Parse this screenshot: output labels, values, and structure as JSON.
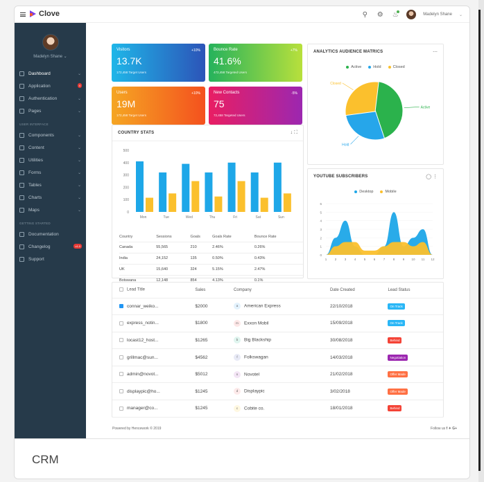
{
  "app": {
    "name": "Clove",
    "user": "Madelyn Shane"
  },
  "sidebar": {
    "profile_name": "Madelyn Shane",
    "items": [
      {
        "label": "Dashboard",
        "icon": "pulse-icon"
      },
      {
        "label": "Application",
        "icon": "calendar-icon",
        "badge": "4"
      },
      {
        "label": "Authentication",
        "icon": "lock-icon"
      },
      {
        "label": "Pages",
        "icon": "page-icon"
      }
    ],
    "section_ui": "USER INTERFACE",
    "ui_items": [
      {
        "label": "Components"
      },
      {
        "label": "Content"
      },
      {
        "label": "Utilities"
      },
      {
        "label": "Forms"
      },
      {
        "label": "Tables"
      },
      {
        "label": "Charts"
      },
      {
        "label": "Maps"
      }
    ],
    "section_start": "GETTING STARTED",
    "start_items": [
      {
        "label": "Documentation"
      },
      {
        "label": "Changelog",
        "badge": "v1.0"
      },
      {
        "label": "Support"
      }
    ]
  },
  "cards": [
    {
      "label": "Visitors",
      "pct": "+10%",
      "value": "13.7K",
      "sub": "172,458 Target Users",
      "color1": "#1fb6e8",
      "color2": "#2c54b8"
    },
    {
      "label": "Bounce Rate",
      "pct": "+7%",
      "value": "41.6%",
      "sub": "472,458 Targeted Users",
      "color1": "#25b25c",
      "color2": "#b8e03c"
    },
    {
      "label": "Users",
      "pct": "+10%",
      "value": "19M",
      "sub": "172,458 Target Users",
      "color1": "#f5a623",
      "color2": "#f4511e"
    },
    {
      "label": "New Contacts",
      "pct": "-5%",
      "value": "75",
      "sub": "72,458 Targeted Users",
      "color1": "#e91e63",
      "color2": "#9c27b0"
    }
  ],
  "country_stats": {
    "title": "COUNTRY STATS",
    "headers": [
      "Country",
      "Sessions",
      "Goals",
      "Goals Rate",
      "Bounce Rate"
    ],
    "rows": [
      [
        "Canada",
        "55,565",
        "210",
        "2.46%",
        "0.26%"
      ],
      [
        "India",
        "24,152",
        "135",
        "0.50%",
        "0.43%"
      ],
      [
        "UK",
        "15,640",
        "324",
        "5.15%",
        "2.47%"
      ],
      [
        "Botswana",
        "12,148",
        "854",
        "4.13%",
        "0.1%"
      ]
    ]
  },
  "analytics": {
    "title": "ANALYTICS AUDIENCE MATRICS",
    "legend": [
      "Active",
      "Hold",
      "Closed"
    ],
    "colors": [
      "#2bb24c",
      "#26a6ea",
      "#fbc02d"
    ]
  },
  "youtube": {
    "title": "YOUTUBE SUBSCRIBERS",
    "legend": [
      "Desktop",
      "Mobile"
    ],
    "colors": [
      "#1ea7e8",
      "#fbc02d"
    ]
  },
  "chart_data": [
    {
      "type": "bar",
      "categories": [
        "Mon",
        "Tue",
        "Wed",
        "Thu",
        "Fri",
        "Sat",
        "Sun"
      ],
      "series": [
        {
          "values": [
            410,
            320,
            390,
            320,
            400,
            320,
            400
          ],
          "color": "#1ea7e8"
        },
        {
          "values": [
            115,
            150,
            250,
            125,
            250,
            115,
            150
          ],
          "color": "#fbc02d"
        }
      ],
      "ylim": [
        0,
        500
      ],
      "yticks": [
        "0",
        "100",
        "200",
        "300",
        "400",
        "500"
      ]
    },
    {
      "type": "pie",
      "labels": [
        "Active",
        "Hold",
        "Closed"
      ],
      "values": [
        43,
        28,
        29
      ],
      "colors": [
        "#2bb24c",
        "#26a6ea",
        "#fbc02d"
      ]
    },
    {
      "type": "area",
      "x": [
        1,
        2,
        3,
        4,
        5,
        6,
        7,
        8,
        9,
        10,
        11,
        12
      ],
      "series": [
        {
          "values": [
            0,
            2,
            4,
            1,
            0,
            0,
            1,
            5,
            1,
            2,
            3,
            0
          ],
          "color": "#1ea7e8"
        },
        {
          "values": [
            0,
            1,
            1.5,
            1.5,
            0.5,
            0.5,
            1,
            1.5,
            1.5,
            1,
            1.5,
            0
          ],
          "color": "#fbc02d"
        }
      ],
      "ylim": [
        0,
        6
      ],
      "yticks": [
        "0",
        "1",
        "2",
        "3",
        "4",
        "5",
        "6"
      ],
      "xticks": [
        "1",
        "2",
        "3",
        "4",
        "5",
        "6",
        "7",
        "8",
        "9",
        "10",
        "11",
        "12"
      ]
    }
  ],
  "leads": {
    "headers": [
      "Lead Title",
      "Sales",
      "Company",
      "Date Created",
      "Lead Status"
    ],
    "rows": [
      {
        "title": "connar_weiko...",
        "sales": "$2000",
        "company": "American Express",
        "cinit": "a",
        "ccolor": "#e3f2fd",
        "date": "22/10/2018",
        "status": "On Track",
        "scolor": "#29b6f6",
        "checked": true
      },
      {
        "title": "express_notin...",
        "sales": "$1800",
        "company": "Exxon Mobil",
        "cinit": "m",
        "ccolor": "#fde7e7",
        "date": "15/09/2018",
        "status": "On Track",
        "scolor": "#29b6f6",
        "checked": false
      },
      {
        "title": "locast12_host...",
        "sales": "$1265",
        "company": "Big Blackship",
        "cinit": "b",
        "ccolor": "#e0f5ef",
        "date": "30/08/2018",
        "status": "Behind",
        "scolor": "#f44336",
        "checked": false
      },
      {
        "title": "grillmac@sun...",
        "sales": "$4562",
        "company": "Folkswagan",
        "cinit": "f",
        "ccolor": "#e8eaf6",
        "date": "14/03/2018",
        "status": "Negotiation",
        "scolor": "#9c27b0",
        "checked": false
      },
      {
        "title": "admin@novot...",
        "sales": "$5012",
        "company": "Novotel",
        "cinit": "n",
        "ccolor": "#f3e5f5",
        "date": "21/02/2018",
        "status": "Offer Made",
        "scolor": "#ff7043",
        "checked": false
      },
      {
        "title": "displaypic@ho...",
        "sales": "$1245",
        "company": "Displaypic",
        "cinit": "d",
        "ccolor": "#fdeaea",
        "date": "3/02/2018",
        "status": "Offer Made",
        "scolor": "#ff7043",
        "checked": false
      },
      {
        "title": "manager@co...",
        "sales": "$1245",
        "company": "Cobite co.",
        "cinit": "c",
        "ccolor": "#fff8e1",
        "date": "18/01/2018",
        "status": "Behind",
        "scolor": "#f44336",
        "checked": false
      }
    ]
  },
  "footer": {
    "left": "Powered by Hencework © 2019",
    "right": "Follow us"
  },
  "caption": "CRM"
}
